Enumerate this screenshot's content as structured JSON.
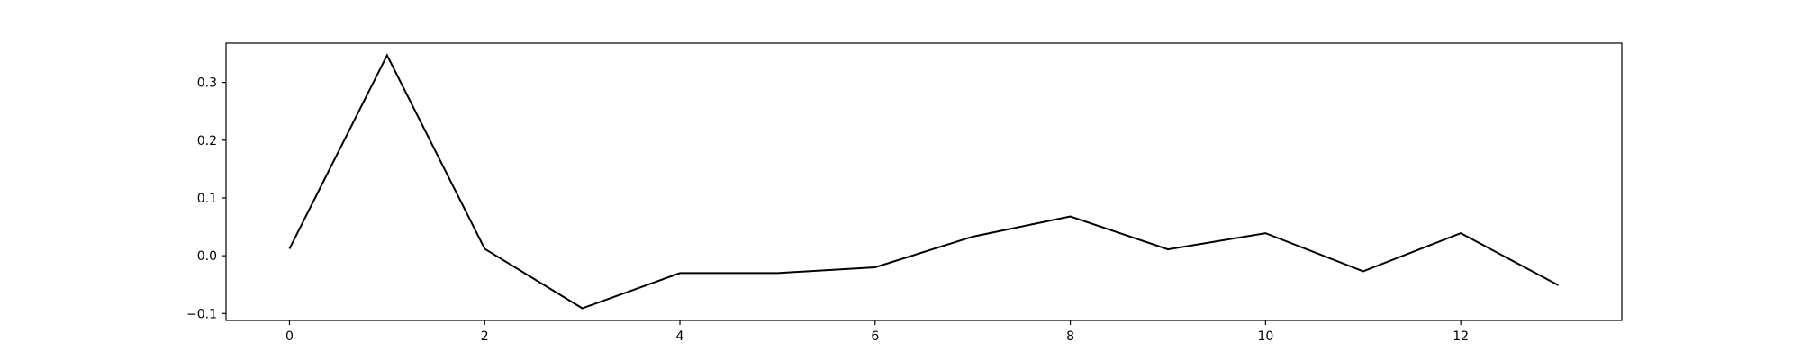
{
  "chart_data": {
    "type": "line",
    "title": "",
    "xlabel": "",
    "ylabel": "",
    "grid": false,
    "x": [
      0,
      1,
      2,
      3,
      4,
      5,
      6,
      7,
      8,
      9,
      10,
      11,
      12,
      13
    ],
    "series": [
      {
        "values": [
          0.012,
          0.347,
          0.012,
          -0.091,
          -0.03,
          -0.03,
          -0.02,
          0.033,
          0.068,
          0.011,
          0.039,
          -0.027,
          0.039,
          -0.051
        ],
        "color": "#000000"
      }
    ],
    "xlim": [
      -0.65,
      13.65
    ],
    "ylim": [
      -0.112,
      0.368
    ],
    "x_ticks": [
      0,
      2,
      4,
      6,
      8,
      10,
      12
    ],
    "x_tick_labels": [
      "0",
      "2",
      "4",
      "6",
      "8",
      "10",
      "12"
    ],
    "y_ticks": [
      -0.1,
      0.0,
      0.1,
      0.2,
      0.3
    ],
    "y_tick_labels": [
      "−0.1",
      "0.0",
      "0.1",
      "0.2",
      "0.3"
    ]
  }
}
